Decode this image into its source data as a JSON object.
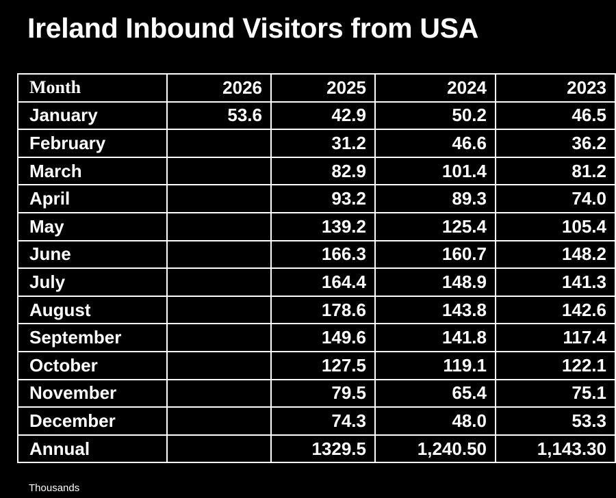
{
  "title": "Ireland Inbound Visitors from USA",
  "table": {
    "header": [
      "Month",
      "2026",
      "2025",
      "2024",
      "2023"
    ],
    "rows": [
      [
        "January",
        "53.6",
        "42.9",
        "50.2",
        "46.5"
      ],
      [
        "February",
        null,
        "31.2",
        "46.6",
        "36.2"
      ],
      [
        "March",
        null,
        "82.9",
        "101.4",
        "81.2"
      ],
      [
        "April",
        null,
        "93.2",
        "89.3",
        "74.0"
      ],
      [
        "May",
        null,
        "139.2",
        "125.4",
        "105.4"
      ],
      [
        "June",
        null,
        "166.3",
        "160.7",
        "148.2"
      ],
      [
        "July",
        null,
        "164.4",
        "148.9",
        "141.3"
      ],
      [
        "August",
        null,
        "178.6",
        "143.8",
        "142.6"
      ],
      [
        "September",
        null,
        "149.6",
        "141.8",
        "117.4"
      ],
      [
        "October",
        null,
        "127.5",
        "119.1",
        "122.1"
      ],
      [
        "November",
        null,
        "79.5",
        "65.4",
        "75.1"
      ],
      [
        "December",
        null,
        "74.3",
        "48.0",
        "53.3"
      ],
      [
        "Annual",
        null,
        "1329.5",
        "1,240.50",
        "1,143.30"
      ]
    ]
  },
  "footnote": "Thousands"
}
